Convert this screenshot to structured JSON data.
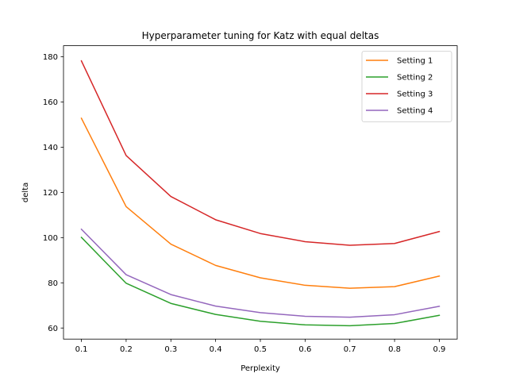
{
  "chart_data": {
    "type": "line",
    "title": "Hyperparameter tuning for Katz with equal deltas",
    "xlabel": "Perplexity",
    "ylabel": "delta",
    "x": [
      0.1,
      0.2,
      0.3,
      0.4,
      0.5,
      0.6,
      0.7,
      0.8,
      0.9
    ],
    "x_ticks": [
      "0.1",
      "0.2",
      "0.3",
      "0.4",
      "0.5",
      "0.6",
      "0.7",
      "0.8",
      "0.9"
    ],
    "y_ticks": [
      60,
      80,
      100,
      120,
      140,
      160,
      180
    ],
    "xlim": [
      0.06,
      0.94
    ],
    "ylim": [
      55.1,
      184.9
    ],
    "grid": false,
    "legend_position": "top-right",
    "series": [
      {
        "name": "Setting 1",
        "color": "#ff7f0e",
        "values": [
          152.8,
          113.7,
          97.1,
          87.7,
          82.2,
          78.9,
          77.6,
          78.3,
          83.0
        ]
      },
      {
        "name": "Setting 2",
        "color": "#2ca02c",
        "values": [
          100.1,
          79.8,
          70.9,
          66.0,
          63.0,
          61.4,
          61.0,
          62.0,
          65.6
        ]
      },
      {
        "name": "Setting 3",
        "color": "#d62728",
        "values": [
          178.2,
          136.3,
          118.2,
          107.9,
          101.8,
          98.2,
          96.6,
          97.4,
          102.7
        ]
      },
      {
        "name": "Setting 4",
        "color": "#9467bd",
        "values": [
          103.7,
          83.6,
          74.8,
          69.7,
          66.8,
          65.2,
          64.8,
          65.9,
          69.6
        ]
      }
    ]
  }
}
